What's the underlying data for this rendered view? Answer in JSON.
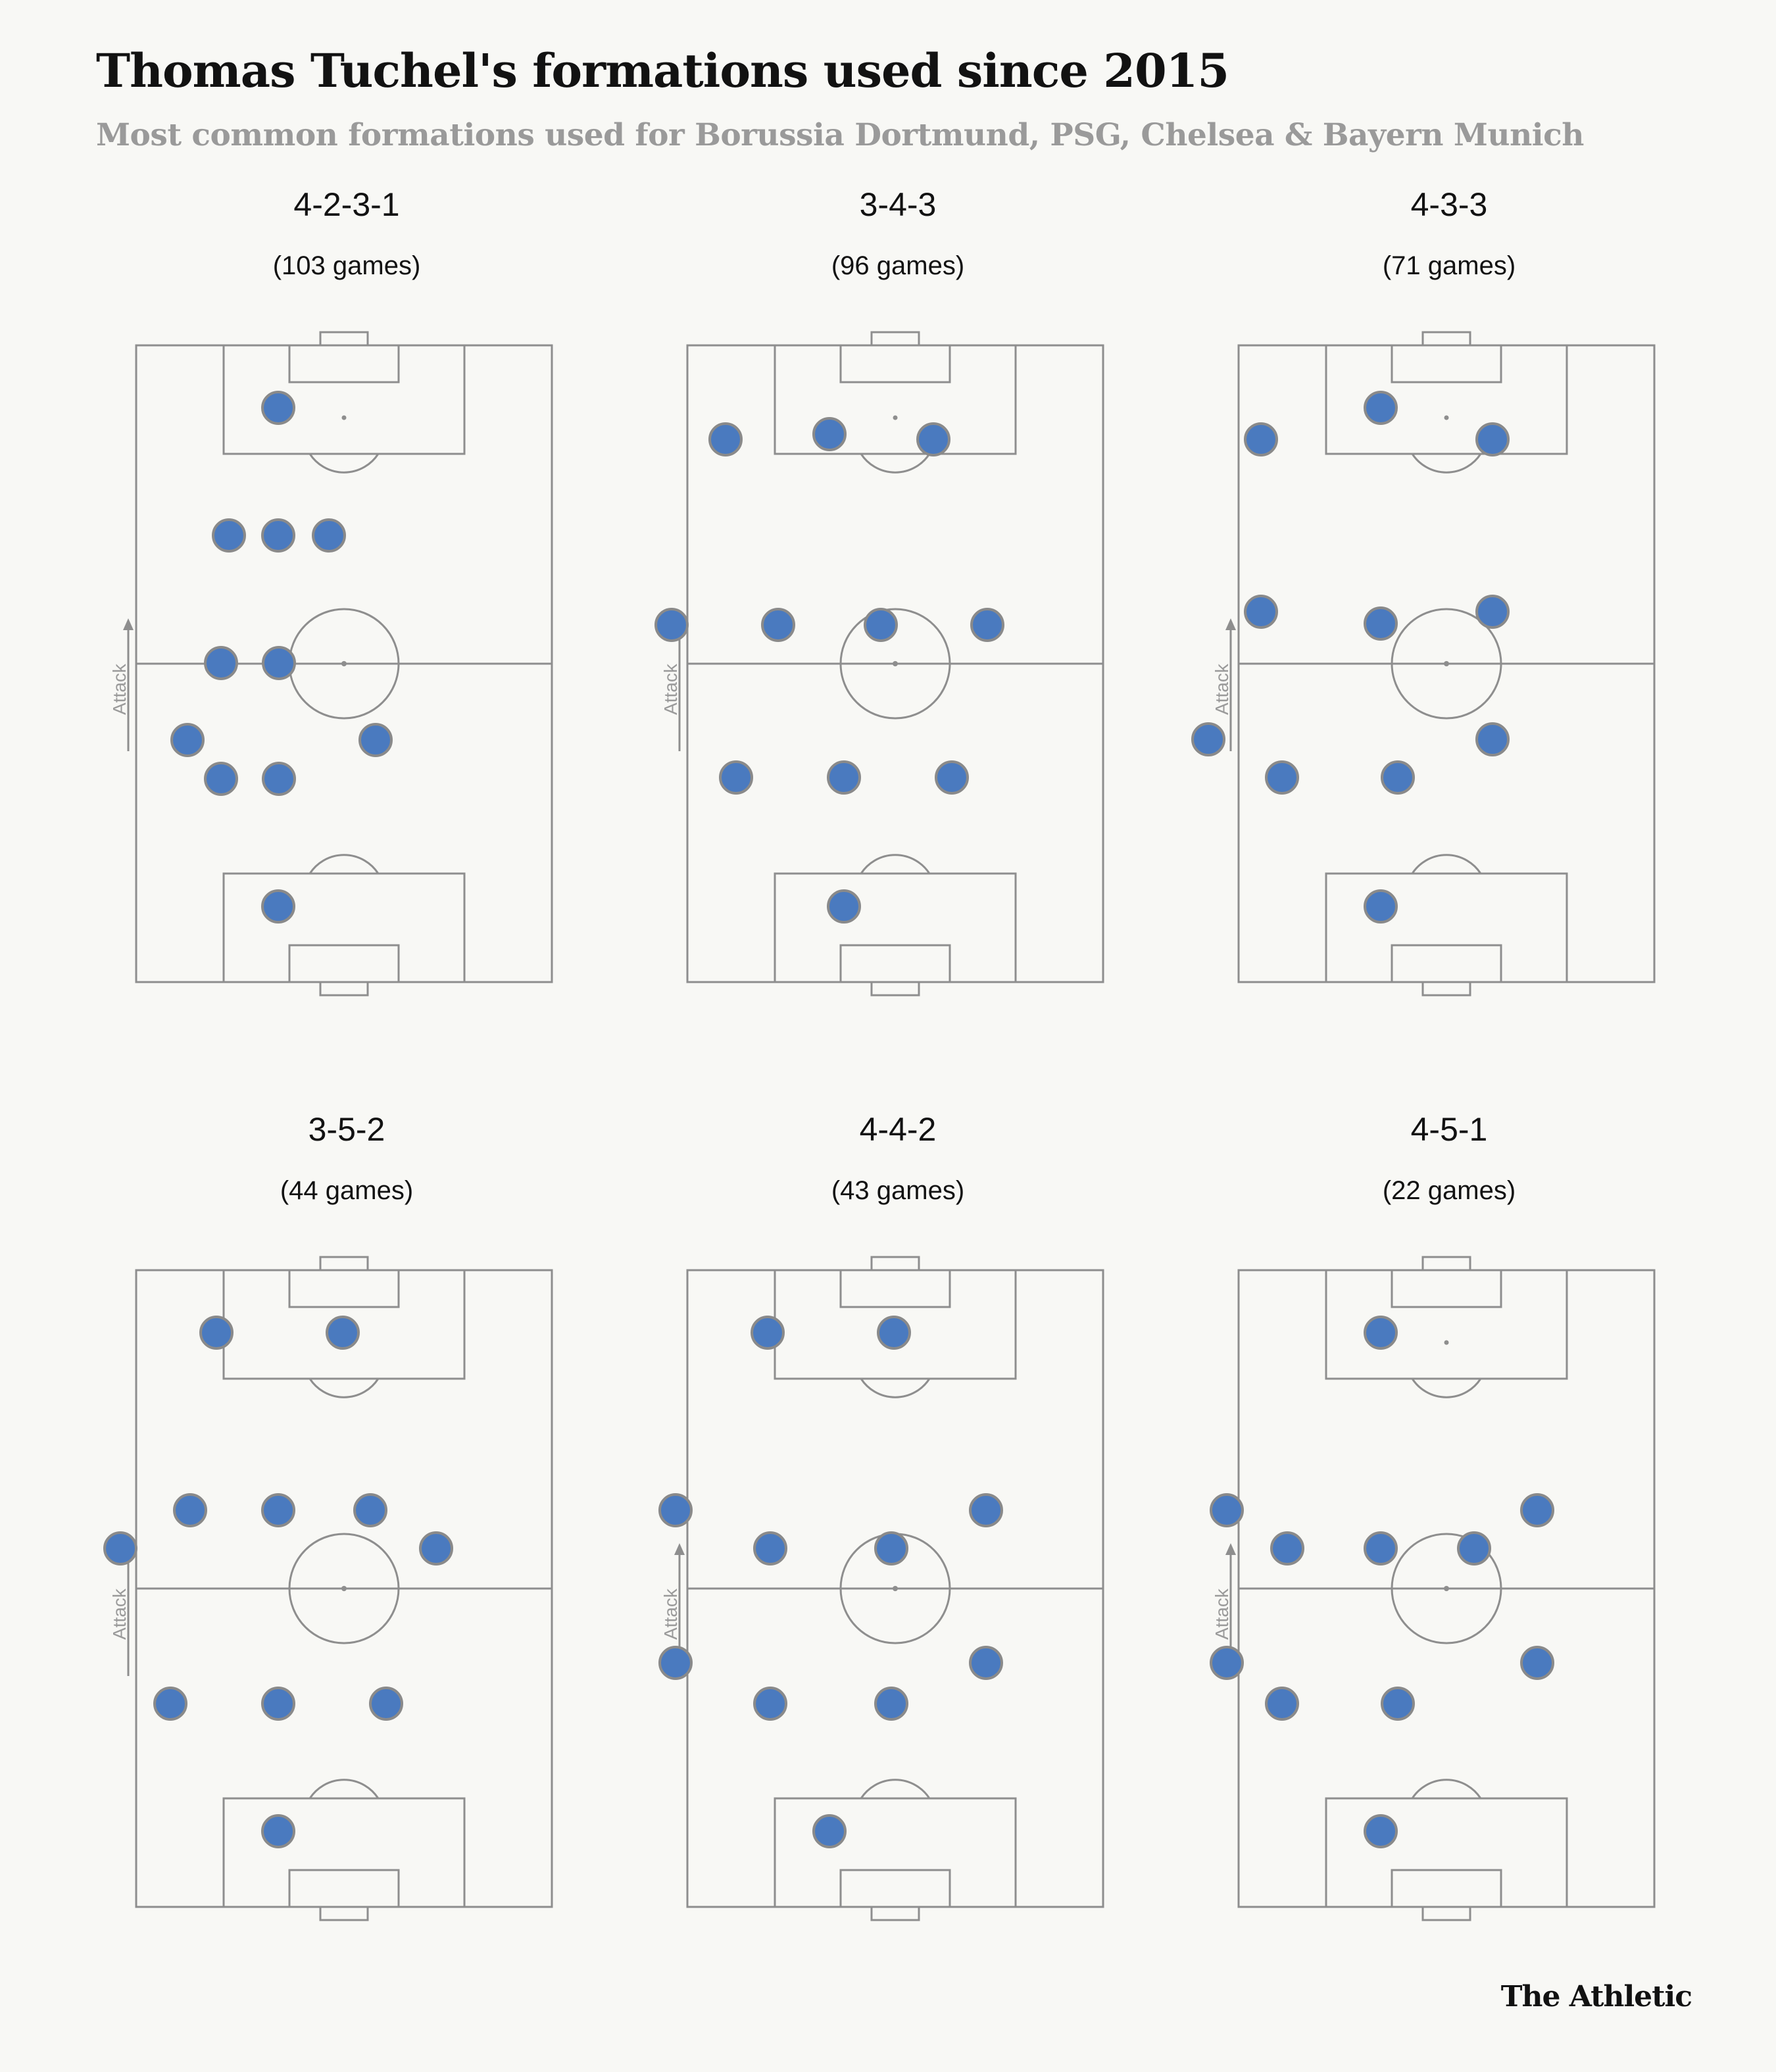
{
  "title": "Thomas Tuchel's formations used since 2015",
  "subtitle": "Most common formations used for Borussia Dortmund, PSG, Chelsea & Bayern Munich",
  "attack_label": "Attack",
  "brand": "The Athletic",
  "colors": {
    "background": "#f8f8f5",
    "pitch_lines": "#8e8e8e",
    "player_fill": "#4a7abf",
    "player_stroke": "#8a8a8a",
    "title": "#121212",
    "subtitle": "#9a9a9a"
  },
  "formations": [
    {
      "name": "4-2-3-1",
      "games_label": "(103 games)",
      "games": 103
    },
    {
      "name": "3-4-3",
      "games_label": "(96 games)",
      "games": 96
    },
    {
      "name": "4-3-3",
      "games_label": "(71 games)",
      "games": 71
    },
    {
      "name": "3-5-2",
      "games_label": "(44 games)",
      "games": 44
    },
    {
      "name": "4-4-2",
      "games_label": "(43 games)",
      "games": 43
    },
    {
      "name": "4-5-1",
      "games_label": "(22 games)",
      "games": 22
    }
  ]
}
